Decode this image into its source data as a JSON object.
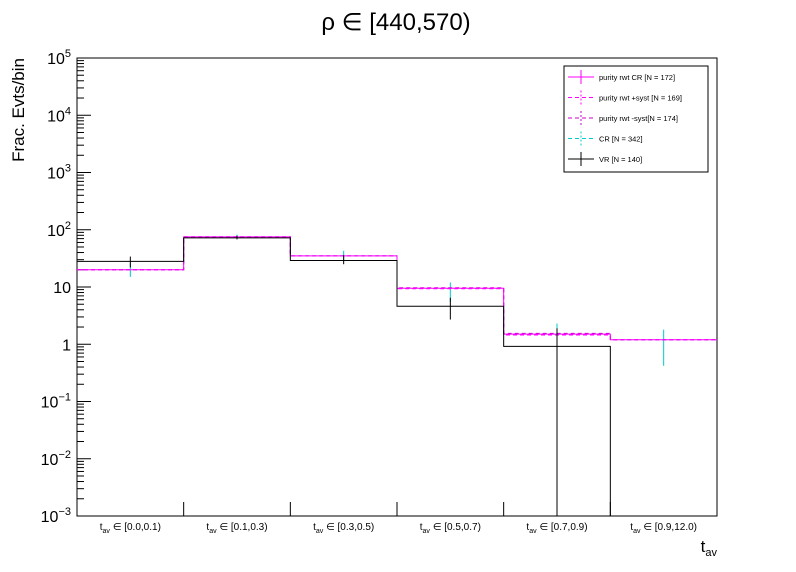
{
  "chart_data": {
    "type": "histogram",
    "title": "ρ ∈ [440,570)",
    "xlabel": "t_av",
    "ylabel": "Frac. Evts/bin",
    "y_scale": "log",
    "ylim": [
      0.001,
      100000
    ],
    "y_ticks": [
      "10^-3",
      "10^-2",
      "10^-1",
      "1",
      "10",
      "10^2",
      "10^3",
      "10^4",
      "10^5"
    ],
    "categories": [
      "t_av ∈ [0.0,0.1)",
      "t_av ∈ [0.1,0.3)",
      "t_av ∈ [0.3,0.5)",
      "t_av ∈ [0.5,0.7)",
      "t_av ∈ [0.7,0.9)",
      "t_av ∈ [0.9,12.0)"
    ],
    "legend_position": "top-right",
    "series": [
      {
        "name": "purity rwt CR [N = 172]",
        "color": "#ff00ff",
        "style": "solid",
        "values": [
          20,
          75,
          35,
          9.5,
          1.5,
          1.2
        ]
      },
      {
        "name": "purity rwt +syst [N = 169]",
        "color": "#ff00ff",
        "style": "dashed",
        "values": [
          20,
          75,
          35,
          9.3,
          1.45,
          1.2
        ]
      },
      {
        "name": "purity rwt -syst[N = 174]",
        "color": "#cc00cc",
        "style": "dashed",
        "values": [
          20,
          75,
          35,
          9.7,
          1.55,
          1.2
        ]
      },
      {
        "name": "CR [N = 342]",
        "color": "#00cccc",
        "style": "dashed",
        "values": [
          20,
          75,
          35,
          9.5,
          1.5,
          1.2
        ],
        "err_low": [
          15,
          68,
          28,
          5.5,
          0.7,
          0.42
        ],
        "err_high": [
          26,
          82,
          43,
          12,
          2.3,
          1.8
        ]
      },
      {
        "name": "VR [N = 140]",
        "color": "#000000",
        "style": "solid",
        "values": [
          28,
          72,
          29,
          4.6,
          0.92,
          null
        ],
        "err_low": [
          22,
          68,
          25,
          2.7,
          0.001,
          null
        ],
        "err_high": [
          34,
          79,
          36,
          6.5,
          1.9,
          null
        ]
      }
    ]
  }
}
